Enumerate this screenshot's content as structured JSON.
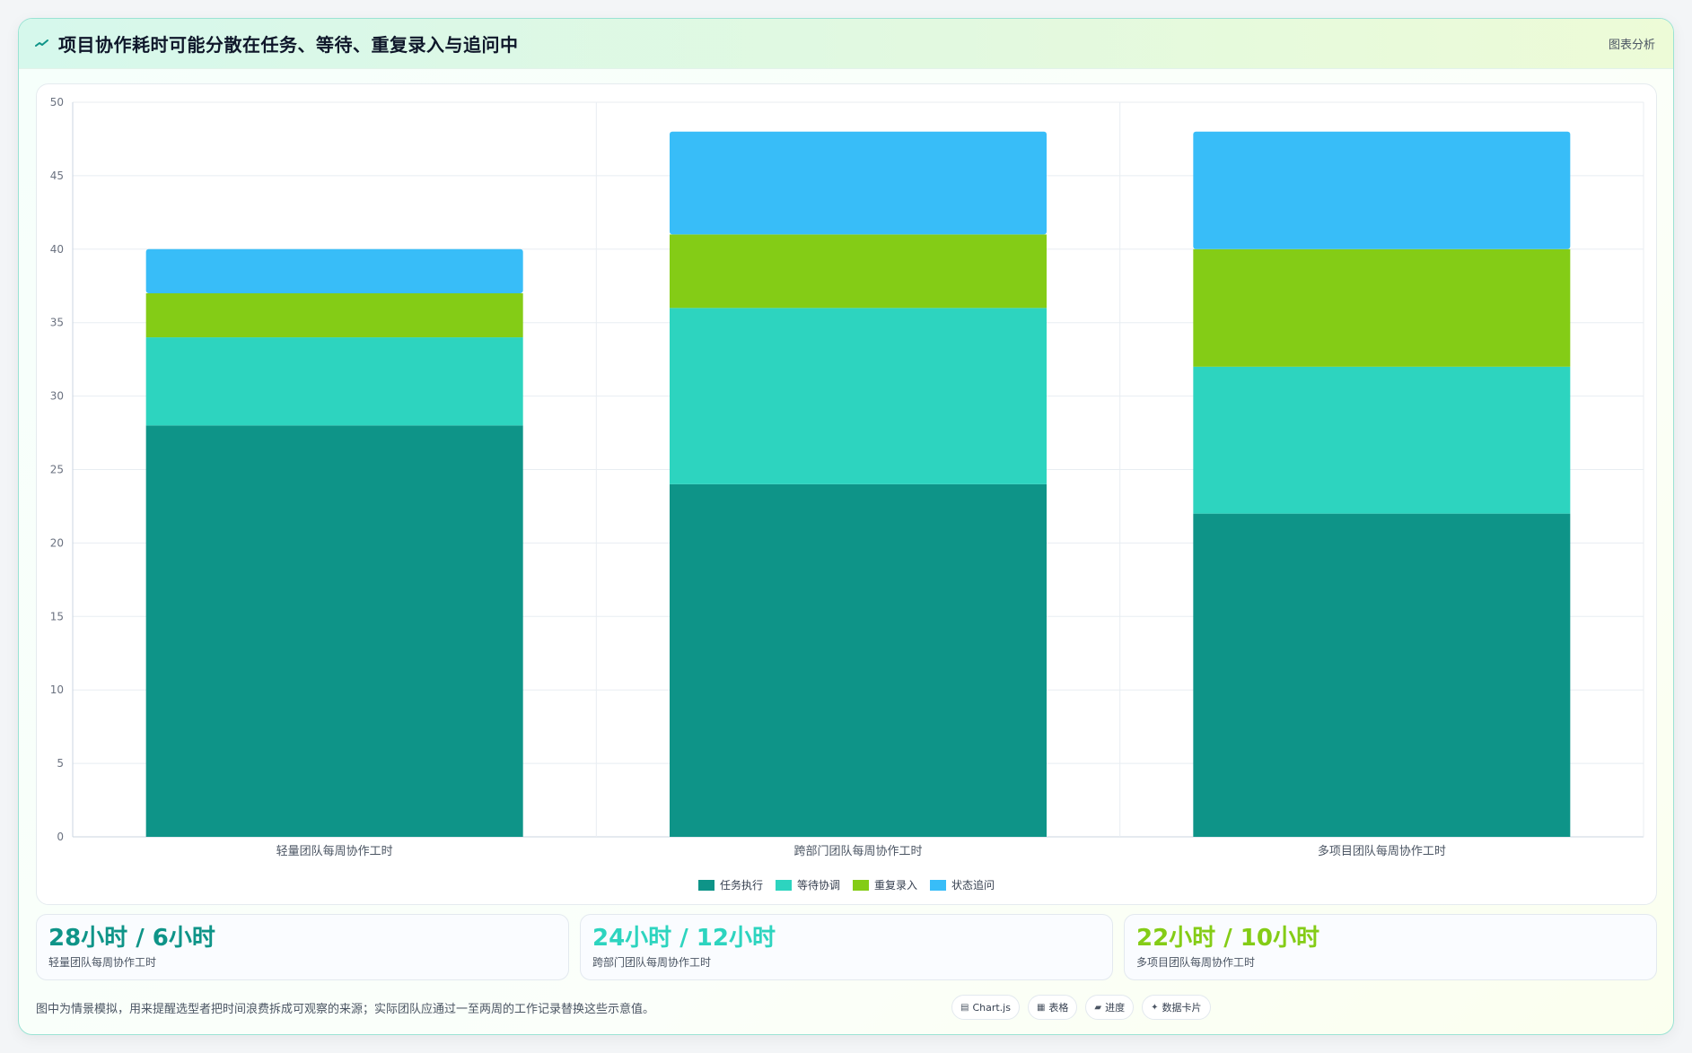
{
  "header": {
    "title": "项目协作耗时可能分散在任务、等待、重复录入与追问中",
    "tag": "图表分析",
    "icon": "trend-line-icon"
  },
  "colors": {
    "task": "#0e9488",
    "waiting": "#2dd4bf",
    "reentry": "#84cc16",
    "followup": "#38bdf8"
  },
  "chart_data": {
    "type": "bar",
    "stacked": true,
    "categories": [
      "轻量团队每周协作工时",
      "跨部门团队每周协作工时",
      "多项目团队每周协作工时"
    ],
    "series": [
      {
        "name": "任务执行",
        "values": [
          28,
          24,
          22
        ],
        "color": "#0e9488"
      },
      {
        "name": "等待协调",
        "values": [
          6,
          12,
          10
        ],
        "color": "#2dd4bf"
      },
      {
        "name": "重复录入",
        "values": [
          3,
          5,
          8
        ],
        "color": "#84cc16"
      },
      {
        "name": "状态追问",
        "values": [
          3,
          7,
          8
        ],
        "color": "#38bdf8"
      }
    ],
    "ylim": [
      0,
      50
    ],
    "yticks": [
      0,
      5,
      10,
      15,
      20,
      25,
      30,
      35,
      40,
      45,
      50
    ],
    "grid": true,
    "legend_position": "bottom"
  },
  "stats": [
    {
      "value": "28小时 / 6小时",
      "label": "轻量团队每周协作工时",
      "color": "#0e9488"
    },
    {
      "value": "24小时 / 12小时",
      "label": "跨部门团队每周协作工时",
      "color": "#2dd4bf"
    },
    {
      "value": "22小时 / 10小时",
      "label": "多项目团队每周协作工时",
      "color": "#84cc16"
    }
  ],
  "footer": {
    "note": "图中为情景模拟，用来提醒选型者把时间浪费拆成可观察的来源；实际团队应通过一至两周的工作记录替换这些示意值。",
    "chips": [
      {
        "icon": "▤",
        "label": "Chart.js",
        "icon_name": "chart-icon"
      },
      {
        "icon": "▦",
        "label": "表格",
        "icon_name": "table-icon"
      },
      {
        "icon": "▰",
        "label": "进度",
        "icon_name": "progress-icon"
      },
      {
        "icon": "✦",
        "label": "数据卡片",
        "icon_name": "card-icon"
      }
    ]
  }
}
